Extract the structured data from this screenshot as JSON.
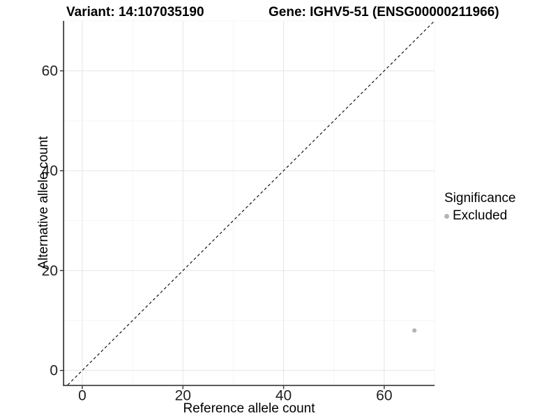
{
  "chart_data": {
    "type": "scatter",
    "title_left": "Variant: 14:107035190",
    "title_right": "Gene: IGHV5-51 (ENSG00000211966)",
    "xlabel": "Reference allele count",
    "ylabel": "Alternative allele count",
    "xlim": [
      -3.6,
      70
    ],
    "ylim": [
      -2.9,
      70
    ],
    "x_ticks": [
      0,
      20,
      40,
      60
    ],
    "y_ticks": [
      0,
      20,
      40,
      60
    ],
    "grid": {
      "major_step": 20,
      "minor_step": 10,
      "major_color": "#e7e7e7",
      "minor_color": "#f3f3f3"
    },
    "reference_line": {
      "type": "identity",
      "style": "dashed",
      "color": "#000000"
    },
    "series": [
      {
        "name": "Excluded",
        "color": "#b5b5b5",
        "points": [
          [
            66,
            8
          ]
        ]
      }
    ],
    "legend": {
      "title": "Significance",
      "position": "right",
      "items": [
        {
          "label": "Excluded",
          "color": "#b5b5b5"
        }
      ]
    },
    "axis_color": "#333333",
    "tick_label_color": "#222222"
  }
}
